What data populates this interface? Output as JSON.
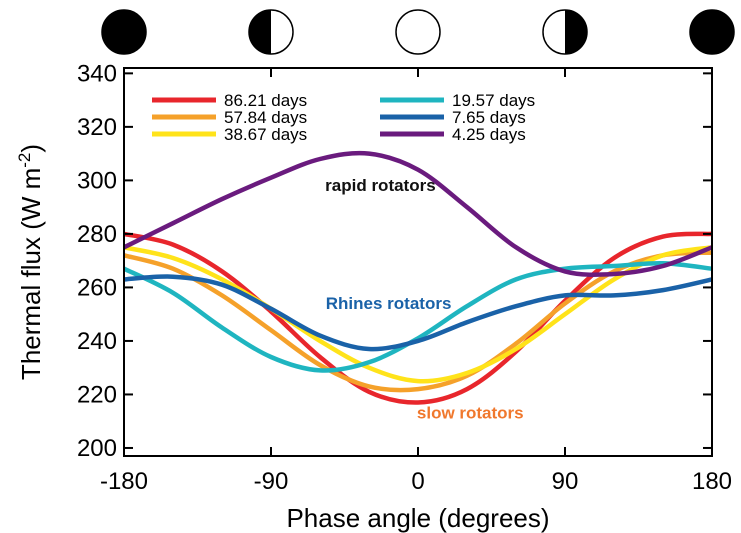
{
  "chart_data": {
    "type": "line",
    "title": "",
    "xlabel": "Phase angle (degrees)",
    "ylabel_main": "Thermal flux (W m",
    "ylabel_sup": "-2",
    "ylabel_close": ")",
    "xlim": [
      -180,
      180
    ],
    "ylim": [
      197,
      342
    ],
    "xticks": [
      -180,
      -90,
      0,
      90,
      180
    ],
    "yticks": [
      200,
      220,
      240,
      260,
      280,
      300,
      320,
      340
    ],
    "grid": false,
    "legend_placement": "top",
    "phase_icons": [
      {
        "phase": -180,
        "illumination": "new"
      },
      {
        "phase": -90,
        "illumination": "right-half-lit"
      },
      {
        "phase": 0,
        "illumination": "full"
      },
      {
        "phase": 90,
        "illumination": "left-half-lit"
      },
      {
        "phase": 180,
        "illumination": "new"
      }
    ],
    "series": [
      {
        "name": "86.21 days",
        "color": "#e8262c",
        "x": [
          -180,
          -150,
          -120,
          -90,
          -60,
          -30,
          0,
          30,
          60,
          90,
          120,
          150,
          180
        ],
        "y": [
          280,
          276,
          266,
          251,
          234,
          221,
          217,
          222,
          236,
          255,
          271,
          279,
          280
        ]
      },
      {
        "name": "57.84 days",
        "color": "#f5a12a",
        "x": [
          -180,
          -150,
          -120,
          -90,
          -60,
          -30,
          0,
          30,
          60,
          90,
          120,
          150,
          180
        ],
        "y": [
          272,
          267,
          257,
          244,
          231,
          223,
          222,
          227,
          239,
          254,
          266,
          272,
          273
        ]
      },
      {
        "name": "38.67 days",
        "color": "#ffe31a",
        "x": [
          -180,
          -150,
          -120,
          -90,
          -60,
          -30,
          0,
          30,
          60,
          90,
          120,
          150,
          180
        ],
        "y": [
          275,
          271,
          263,
          252,
          240,
          230,
          225,
          228,
          237,
          250,
          263,
          272,
          275
        ]
      },
      {
        "name": "19.57 days",
        "color": "#1fb5c0",
        "x": [
          -180,
          -150,
          -120,
          -90,
          -60,
          -30,
          0,
          30,
          60,
          90,
          120,
          150,
          180
        ],
        "y": [
          267,
          258,
          245,
          234,
          229,
          232,
          241,
          253,
          263,
          267,
          268,
          269,
          267
        ]
      },
      {
        "name": "7.65 days",
        "color": "#1a62a8",
        "x": [
          -180,
          -150,
          -120,
          -90,
          -60,
          -30,
          0,
          30,
          60,
          90,
          120,
          150,
          180
        ],
        "y": [
          263,
          264,
          261,
          252,
          242,
          237,
          240,
          247,
          253,
          257,
          257,
          259,
          263
        ]
      },
      {
        "name": "4.25 days",
        "color": "#6a1b7e",
        "x": [
          -180,
          -150,
          -120,
          -90,
          -60,
          -30,
          0,
          30,
          60,
          90,
          120,
          150,
          180
        ],
        "y": [
          275,
          284,
          293,
          301,
          308,
          310,
          304,
          290,
          275,
          266,
          265,
          268,
          275
        ]
      }
    ],
    "annotations": [
      {
        "text": "rapid rotators",
        "x": -23,
        "y": 296,
        "color": "#111111"
      },
      {
        "text": "Rhines rotators",
        "x": -18,
        "y": 252,
        "color": "#1a62a8"
      },
      {
        "text": "slow rotators",
        "x": 32,
        "y": 211,
        "color": "#f0782d"
      }
    ]
  }
}
